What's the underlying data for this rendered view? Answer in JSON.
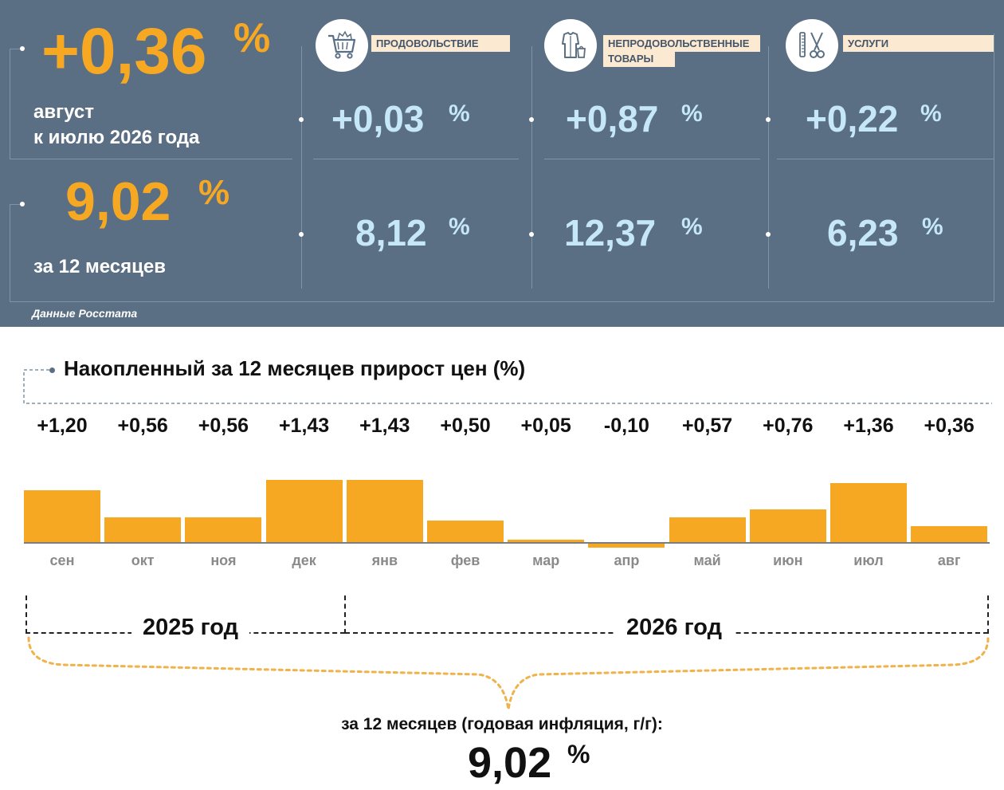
{
  "header": {
    "month_value": "+0,36",
    "month_pct": "%",
    "month_caption_1": "август",
    "month_caption_2": "к июлю 2026 года",
    "year_value": "9,02",
    "year_pct": "%",
    "year_caption": "за 12 месяцев",
    "source": "Данные Росстата"
  },
  "categories": [
    {
      "label": "ПРОДОВОЛЬСТВИЕ",
      "icon": "shopping-cart-icon",
      "month_value": "+0,03",
      "year_value": "8,12",
      "pct": "%"
    },
    {
      "label": "НЕПРОДОВОЛЬСТВЕННЫЕ",
      "label_2": "ТОВАРЫ",
      "icon": "clothing-icon",
      "month_value": "+0,87",
      "year_value": "12,37",
      "pct": "%"
    },
    {
      "label": "УСЛУГИ",
      "icon": "scissors-comb-icon",
      "month_value": "+0,22",
      "year_value": "6,23",
      "pct": "%"
    }
  ],
  "colors": {
    "panel": "#5a6f83",
    "accent": "#f7a823",
    "value_light": "#c5e7f7",
    "label_bg": "#fbe9d2"
  },
  "chart_data": {
    "type": "bar",
    "title": "Накопленный за 12 месяцев прирост цен (%)",
    "categories": [
      "сен",
      "окт",
      "ноя",
      "дек",
      "янв",
      "фев",
      "мар",
      "апр",
      "май",
      "июн",
      "июл",
      "авг"
    ],
    "values": [
      1.2,
      0.56,
      0.56,
      1.43,
      1.43,
      0.5,
      0.05,
      -0.1,
      0.57,
      0.76,
      1.36,
      0.36
    ],
    "value_labels": [
      "+1,20",
      "+0,56",
      "+0,56",
      "+1,43",
      "+1,43",
      "+0,50",
      "+0,05",
      "-0,10",
      "+0,57",
      "+0,76",
      "+1,36",
      "+0,36"
    ],
    "year_groups": [
      {
        "label": "2025 год",
        "months": [
          "сен",
          "окт",
          "ноя",
          "дек"
        ]
      },
      {
        "label": "2026 год",
        "months": [
          "янв",
          "фев",
          "мар",
          "апр",
          "май",
          "июн",
          "июл",
          "авг"
        ]
      }
    ],
    "summary_caption": "за 12 месяцев (годовая инфляция, г/г):",
    "summary_value": "9,02",
    "summary_pct": "%",
    "grid": false
  }
}
